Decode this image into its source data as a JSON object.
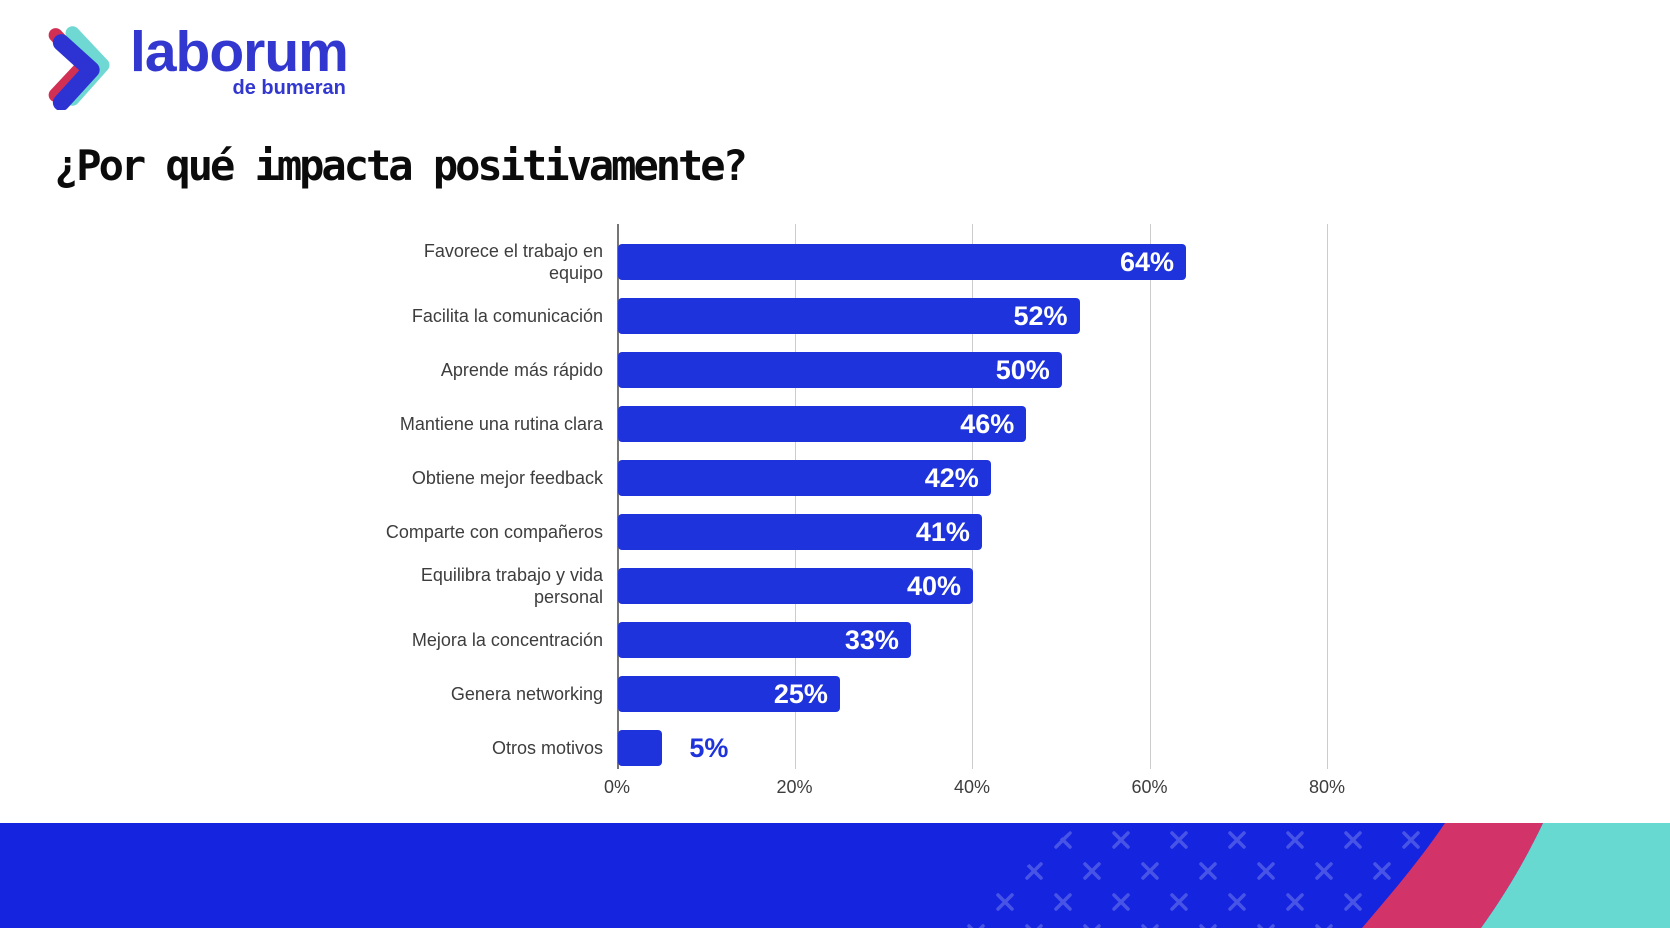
{
  "brand": {
    "name": "laborum",
    "tagline": "de bumeran",
    "wordmark_color": "#3238cf",
    "chevron_colors": {
      "front_blue": "#2d33d2",
      "back_left_red": "#d22f55",
      "back_right_teal": "#6fd8d2"
    }
  },
  "title": "¿Por qué impacta positivamente?",
  "chart_data": {
    "type": "bar",
    "orientation": "horizontal",
    "title": "¿Por qué impacta positivamente?",
    "categories": [
      "Favorece el trabajo en\nequipo",
      "Facilita la comunicación",
      "Aprende más rápido",
      "Mantiene una rutina clara",
      "Obtiene mejor feedback",
      "Comparte con compañeros",
      "Equilibra trabajo y vida\npersonal",
      "Mejora la concentración",
      "Genera networking",
      "Otros motivos"
    ],
    "values": [
      64,
      52,
      50,
      46,
      42,
      41,
      40,
      33,
      25,
      5
    ],
    "value_labels": [
      "64%",
      "52%",
      "50%",
      "46%",
      "42%",
      "41%",
      "40%",
      "33%",
      "25%",
      "5%"
    ],
    "x_ticks": [
      "0%",
      "20%",
      "40%",
      "60%",
      "80%"
    ],
    "x_tick_values": [
      0,
      20,
      40,
      60,
      80
    ],
    "xlim": [
      0,
      88
    ],
    "xlabel": "",
    "ylabel": "",
    "grid": "vertical",
    "legend": "none",
    "bar_color": "#1e33db",
    "value_label_inside_color": "#ffffff",
    "value_label_outside_color": "#1e33db",
    "axis_text_color": "#3d3d3d",
    "gridline_color": "#cccccc"
  },
  "footer": {
    "band_color": "#1424df",
    "accent_pink": "#d23368",
    "accent_teal": "#68d9d1",
    "pattern": "x-marks"
  }
}
